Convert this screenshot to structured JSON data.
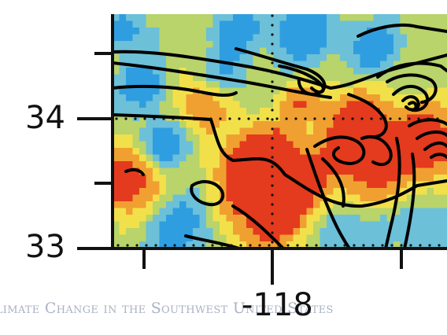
{
  "map": {
    "colors": {
      "low": "#2f9ee0",
      "mid_low": "#6cc0d8",
      "mid": "#b8d46a",
      "mid_high": "#f2e04a",
      "high": "#f0a030",
      "peak": "#e43a1e",
      "contour": "#000000"
    },
    "axes": {
      "y_ticks": [
        {
          "value": 34,
          "label": "34"
        },
        {
          "value": 33,
          "label": "33"
        }
      ],
      "x_ticks": [
        {
          "value": -118,
          "label": "-118"
        }
      ]
    },
    "watermark": "Climate Change in the Southwest United States"
  }
}
